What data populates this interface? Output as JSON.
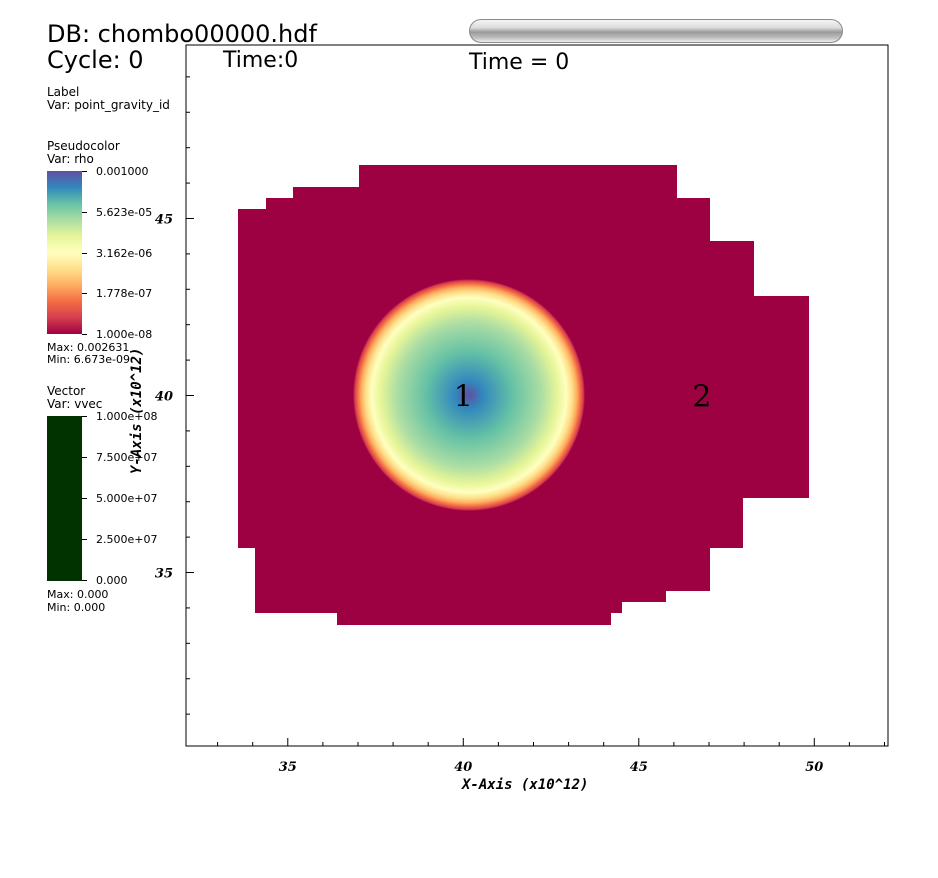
{
  "header": {
    "db_label": "DB: chombo00000.hdf",
    "cycle_label": "Cycle: 0",
    "time_label": "Time:0",
    "time_center": "Time = 0"
  },
  "legend_label": {
    "title": "Label",
    "var": "Var: point_gravity_id"
  },
  "legend_pseudocolor": {
    "title": "Pseudocolor",
    "var": "Var: rho",
    "ticks": [
      "0.001000",
      "5.623e-05",
      "3.162e-06",
      "1.778e-07",
      "1.000e-08"
    ],
    "max": "Max:  0.002631",
    "min": "Min:  6.673e-09"
  },
  "legend_vector": {
    "title": "Vector",
    "var": "Var: vvec",
    "ticks": [
      "1.000e+08",
      "7.500e+07",
      "5.000e+07",
      "2.500e+07",
      "0.000"
    ],
    "max": "Max:  0.000",
    "min": "Min:  0.000",
    "color": "#003300"
  },
  "colors": {
    "background_field": "#9e0142",
    "colormap": [
      "#5e4fa2",
      "#3288bd",
      "#66c2a5",
      "#abdda4",
      "#e6f598",
      "#ffffbf",
      "#fee08b",
      "#fdae61",
      "#f46d43",
      "#d53e4f",
      "#9e0142"
    ]
  },
  "chart_data": {
    "type": "heatmap",
    "xlabel": "X-Axis (x10^12)",
    "ylabel": "Y-Axis (x10^12)",
    "xlim": [
      32.1,
      52.1
    ],
    "ylim": [
      30.1,
      49.9
    ],
    "x_ticks": [
      "35",
      "40",
      "45",
      "50"
    ],
    "y_ticks": [
      "35",
      "40",
      "45"
    ],
    "point_labels": [
      {
        "text": "1",
        "x": 40.0,
        "y": 40.0
      },
      {
        "text": "2",
        "x": 46.8,
        "y": 40.0
      }
    ],
    "disk": {
      "center": [
        40.0,
        40.0
      ],
      "radius": 3.3,
      "variable": "rho",
      "center_value": 0.001,
      "edge_value": 1e-08
    }
  }
}
